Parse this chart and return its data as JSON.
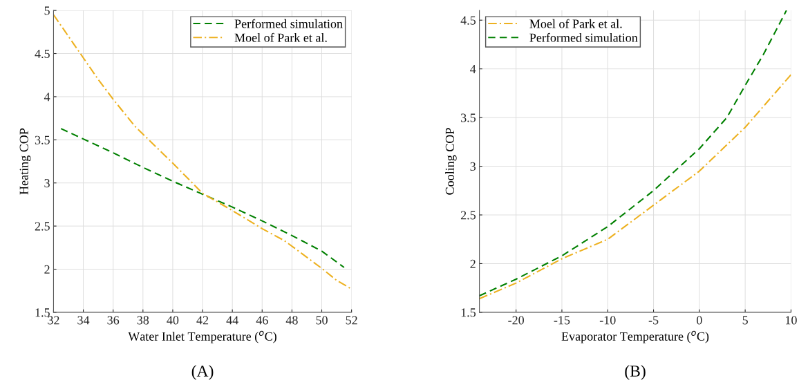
{
  "chart_data": [
    {
      "type": "line",
      "xlabel": "Water Inlet Temperature ($^{o}$C)",
      "ylabel": "Heating COP",
      "xlim": [
        32,
        52
      ],
      "ylim": [
        1.5,
        5
      ],
      "xticks": [
        32,
        34,
        36,
        38,
        40,
        42,
        44,
        46,
        48,
        50,
        52
      ],
      "yticks": [
        1.5,
        2,
        2.5,
        3,
        3.5,
        4,
        4.5,
        5
      ],
      "grid": true,
      "legend": "top right",
      "annotations": [
        "(A)"
      ],
      "series": [
        {
          "name": "Performed simulation",
          "color": "#008000",
          "line_style": "dashed",
          "x": [
            32.5,
            34,
            36,
            38,
            40,
            42,
            44,
            46,
            48,
            50,
            51.5
          ],
          "values": [
            3.63,
            3.51,
            3.35,
            3.18,
            3.02,
            2.87,
            2.72,
            2.56,
            2.39,
            2.21,
            2.02
          ]
        },
        {
          "name": "Moel of Park et al.",
          "color": "#edb120",
          "line_style": "dashdot",
          "x": [
            32,
            34,
            35,
            36,
            37.5,
            40,
            42,
            44,
            46,
            47.5,
            50,
            51,
            52
          ],
          "values": [
            4.95,
            4.45,
            4.2,
            3.97,
            3.65,
            3.23,
            2.88,
            2.68,
            2.47,
            2.33,
            2.01,
            1.87,
            1.77
          ]
        }
      ]
    },
    {
      "type": "line",
      "xlabel": "Evaporator Temperature ($^{o}$C)",
      "ylabel": "Cooling COP",
      "xlim": [
        -24,
        10
      ],
      "ylim": [
        1.5,
        4.6
      ],
      "xticks": [
        -20,
        -15,
        -10,
        -5,
        0,
        5,
        10
      ],
      "yticks": [
        1.5,
        2,
        2.5,
        3,
        3.5,
        4,
        4.5
      ],
      "grid": true,
      "legend": "top left",
      "annotations": [
        "(B)"
      ],
      "series": [
        {
          "name": "Moel of Park et al.",
          "color": "#edb120",
          "line_style": "dashdot",
          "x": [
            -24,
            -20,
            -15,
            -10,
            -5,
            0,
            5,
            10
          ],
          "values": [
            1.64,
            1.8,
            2.05,
            2.25,
            2.6,
            2.95,
            3.4,
            3.94
          ]
        },
        {
          "name": "Performed simulation",
          "color": "#008000",
          "line_style": "dashed",
          "x": [
            -24,
            -20,
            -15,
            -10,
            -5,
            0,
            3,
            5,
            7,
            9.5
          ],
          "values": [
            1.67,
            1.84,
            2.08,
            2.38,
            2.75,
            3.18,
            3.5,
            3.83,
            4.15,
            4.6
          ]
        }
      ]
    }
  ]
}
